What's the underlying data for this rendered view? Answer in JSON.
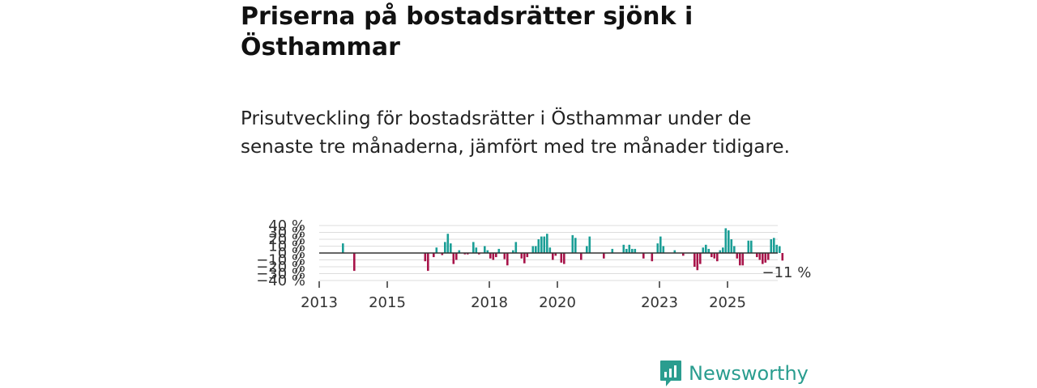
{
  "title": "Priserna på bostadsrätter sjönk i Östhammar",
  "subtitle": "Prisutveckling för bostadsrätter i Östhammar under de senaste tre månaderna, jämfört med tre månader tidigare.",
  "brand": {
    "name": "Newsworthy",
    "icon": "bar-chart-logo-icon"
  },
  "colors": {
    "positive": "#1a9e96",
    "negative": "#a8144a",
    "grid": "#dddddd",
    "zero": "#333333",
    "brand": "#2a9d8f"
  },
  "chart_data": {
    "type": "bar",
    "title": "",
    "xlabel": "",
    "ylabel": "",
    "ylim": [
      -40,
      40
    ],
    "grid": true,
    "y_ticks": [
      {
        "value": 40,
        "label": "40 %"
      },
      {
        "value": 30,
        "label": "30 %"
      },
      {
        "value": 20,
        "label": "20 %"
      },
      {
        "value": 10,
        "label": "10 %"
      },
      {
        "value": 0,
        "label": "0 %"
      },
      {
        "value": -10,
        "label": "−10 %"
      },
      {
        "value": -20,
        "label": "−20 %"
      },
      {
        "value": -30,
        "label": "−30 %"
      },
      {
        "value": -40,
        "label": "−40 %"
      }
    ],
    "x_ticks": [
      "2013",
      "2015",
      "2018",
      "2020",
      "2023",
      "2025"
    ],
    "x_range": [
      "2013-01",
      "2026-06"
    ],
    "last_label": "−11 %",
    "series": [
      {
        "name": "Prisutveckling",
        "points": [
          {
            "x": "2013-09",
            "v": 14
          },
          {
            "x": "2014-01",
            "v": -26
          },
          {
            "x": "2016-02",
            "v": -12
          },
          {
            "x": "2016-03",
            "v": -26
          },
          {
            "x": "2016-05",
            "v": -6
          },
          {
            "x": "2016-06",
            "v": 8
          },
          {
            "x": "2016-08",
            "v": -3
          },
          {
            "x": "2016-09",
            "v": 16
          },
          {
            "x": "2016-10",
            "v": 28
          },
          {
            "x": "2016-11",
            "v": 14
          },
          {
            "x": "2016-12",
            "v": -16
          },
          {
            "x": "2017-01",
            "v": -10
          },
          {
            "x": "2017-02",
            "v": 4
          },
          {
            "x": "2017-04",
            "v": -2
          },
          {
            "x": "2017-05",
            "v": -2
          },
          {
            "x": "2017-07",
            "v": 16
          },
          {
            "x": "2017-08",
            "v": 8
          },
          {
            "x": "2017-09",
            "v": -2
          },
          {
            "x": "2017-11",
            "v": 10
          },
          {
            "x": "2017-12",
            "v": 4
          },
          {
            "x": "2018-01",
            "v": -8
          },
          {
            "x": "2018-02",
            "v": -10
          },
          {
            "x": "2018-03",
            "v": -6
          },
          {
            "x": "2018-04",
            "v": 6
          },
          {
            "x": "2018-06",
            "v": -9
          },
          {
            "x": "2018-07",
            "v": -18
          },
          {
            "x": "2018-09",
            "v": 4
          },
          {
            "x": "2018-10",
            "v": 16
          },
          {
            "x": "2018-12",
            "v": -8
          },
          {
            "x": "2019-01",
            "v": -15
          },
          {
            "x": "2019-02",
            "v": -6
          },
          {
            "x": "2019-04",
            "v": 10
          },
          {
            "x": "2019-05",
            "v": 10
          },
          {
            "x": "2019-06",
            "v": 20
          },
          {
            "x": "2019-07",
            "v": 24
          },
          {
            "x": "2019-08",
            "v": 24
          },
          {
            "x": "2019-09",
            "v": 28
          },
          {
            "x": "2019-10",
            "v": 8
          },
          {
            "x": "2019-11",
            "v": -10
          },
          {
            "x": "2019-12",
            "v": -4
          },
          {
            "x": "2020-02",
            "v": -14
          },
          {
            "x": "2020-03",
            "v": -16
          },
          {
            "x": "2020-06",
            "v": 26
          },
          {
            "x": "2020-07",
            "v": 22
          },
          {
            "x": "2020-09",
            "v": -10
          },
          {
            "x": "2020-11",
            "v": 10
          },
          {
            "x": "2020-12",
            "v": 24
          },
          {
            "x": "2021-05",
            "v": -8
          },
          {
            "x": "2021-08",
            "v": 6
          },
          {
            "x": "2021-12",
            "v": 12
          },
          {
            "x": "2022-01",
            "v": 6
          },
          {
            "x": "2022-02",
            "v": 12
          },
          {
            "x": "2022-03",
            "v": 6
          },
          {
            "x": "2022-04",
            "v": 6
          },
          {
            "x": "2022-07",
            "v": -8
          },
          {
            "x": "2022-10",
            "v": -12
          },
          {
            "x": "2022-12",
            "v": 14
          },
          {
            "x": "2023-01",
            "v": 24
          },
          {
            "x": "2023-02",
            "v": 10
          },
          {
            "x": "2023-06",
            "v": 4
          },
          {
            "x": "2023-09",
            "v": -4
          },
          {
            "x": "2024-01",
            "v": -20
          },
          {
            "x": "2024-02",
            "v": -25
          },
          {
            "x": "2024-03",
            "v": -16
          },
          {
            "x": "2024-04",
            "v": 8
          },
          {
            "x": "2024-05",
            "v": 12
          },
          {
            "x": "2024-06",
            "v": 6
          },
          {
            "x": "2024-07",
            "v": -6
          },
          {
            "x": "2024-08",
            "v": -8
          },
          {
            "x": "2024-09",
            "v": -12
          },
          {
            "x": "2024-10",
            "v": 4
          },
          {
            "x": "2024-11",
            "v": 8
          },
          {
            "x": "2024-12",
            "v": 36
          },
          {
            "x": "2025-01",
            "v": 33
          },
          {
            "x": "2025-02",
            "v": 20
          },
          {
            "x": "2025-03",
            "v": 10
          },
          {
            "x": "2025-04",
            "v": -8
          },
          {
            "x": "2025-05",
            "v": -18
          },
          {
            "x": "2025-06",
            "v": -18
          },
          {
            "x": "2025-08",
            "v": 18
          },
          {
            "x": "2025-09",
            "v": 18
          },
          {
            "x": "2025-11",
            "v": -6
          },
          {
            "x": "2025-12",
            "v": -10
          },
          {
            "x": "2026-01",
            "v": -16
          },
          {
            "x": "2026-02",
            "v": -14
          },
          {
            "x": "2026-03",
            "v": -10
          },
          {
            "x": "2026-04",
            "v": 20
          },
          {
            "x": "2026-05",
            "v": 22
          },
          {
            "x": "2026-06",
            "v": 12
          },
          {
            "x": "2026-07",
            "v": 10
          },
          {
            "x": "2026-08",
            "v": -11
          }
        ]
      }
    ]
  }
}
